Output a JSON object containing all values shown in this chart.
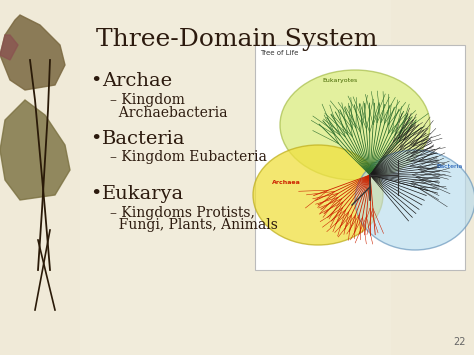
{
  "title": "Three-Domain System",
  "title_fontsize": 18,
  "title_color": "#2c1a0e",
  "title_font": "serif",
  "bg_color": "#f0ead8",
  "bullet_items": [
    {
      "main": "Archae",
      "sub_line1": "– Kingdom",
      "sub_line2": "  Archaebacteria",
      "main_size": 14,
      "sub_size": 10
    },
    {
      "main": "Bacteria",
      "sub_line1": "– Kingdom Eubacteria",
      "sub_line2": "",
      "main_size": 14,
      "sub_size": 10
    },
    {
      "main": "Eukarya",
      "sub_line1": "– Kingdoms Protists,",
      "sub_line2": "  Fungi, Plants, Animals",
      "main_size": 14,
      "sub_size": 10
    }
  ],
  "bullet_color": "#2c1a0e",
  "sub_color": "#2c1a0e",
  "page_number": "22",
  "left_strip_color": "#d4c4a0",
  "diagram_bg": "#ffffff",
  "diagram_border": "#cccccc",
  "eukarya_color": "#d4e86a",
  "eukarya_edge": "#a0b840",
  "archaea_color": "#f0e040",
  "archaea_edge": "#c0b020",
  "bacteria_color": "#b8dced",
  "bacteria_edge": "#6090b8",
  "tree_green": "#2d6e2d",
  "tree_red": "#cc2200",
  "tree_dark": "#1a1a1a",
  "label_green": "#446600",
  "label_red": "#cc2200",
  "label_blue": "#0044aa"
}
